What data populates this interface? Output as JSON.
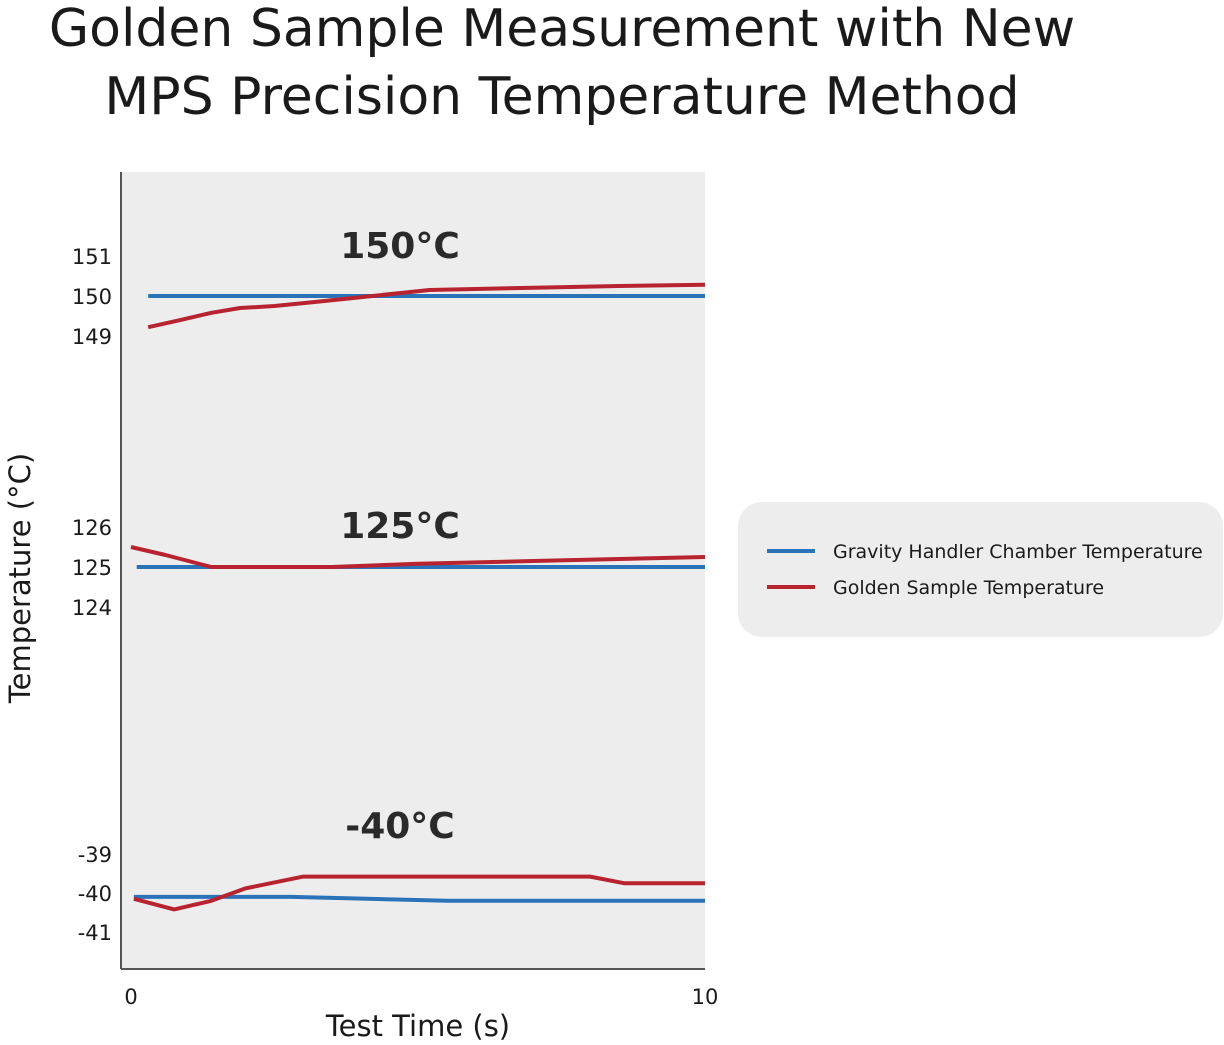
{
  "chart_data": {
    "type": "line",
    "title": [
      "Golden Sample Measurement with New",
      "MPS Precision Temperature Method"
    ],
    "xlabel": "Test Time (s)",
    "ylabel": "Temperature (°C)",
    "xlim": [
      0,
      10
    ],
    "x_ticks": [
      "0",
      "10"
    ],
    "grid": false,
    "legend_position": "right",
    "legend": [
      {
        "name": "Gravity Handler Chamber Temperature",
        "color": "#2a73b9"
      },
      {
        "name": "Golden Sample Temperature",
        "color": "#b82330"
      }
    ],
    "panels": [
      {
        "label": "150°C",
        "y_ticks": [
          "151",
          "150",
          "149"
        ],
        "ylim": [
          149,
          151
        ],
        "series": [
          {
            "name": "Gravity Handler Chamber Temperature",
            "color": "#2a73b9",
            "x": [
              0.3,
              10
            ],
            "y": [
              150.0,
              150.0
            ]
          },
          {
            "name": "Golden Sample Temperature",
            "color": "#b82330",
            "x": [
              0.3,
              0.8,
              1.4,
              1.9,
              2.5,
              3.2,
              4.0,
              5.2,
              6.8,
              8.5,
              10.0
            ],
            "y": [
              149.22,
              149.38,
              149.58,
              149.7,
              149.75,
              149.85,
              149.97,
              150.15,
              150.2,
              150.25,
              150.28
            ]
          }
        ]
      },
      {
        "label": "125°C",
        "y_ticks": [
          "126",
          "125",
          "124"
        ],
        "ylim": [
          124,
          126
        ],
        "series": [
          {
            "name": "Gravity Handler Chamber Temperature",
            "color": "#2a73b9",
            "x": [
              0.1,
              10
            ],
            "y": [
              125.0,
              125.0
            ]
          },
          {
            "name": "Golden Sample Temperature",
            "color": "#b82330",
            "x": [
              0.0,
              0.6,
              1.4,
              2.5,
              3.5,
              5.0,
              7.0,
              8.5,
              10.0
            ],
            "y": [
              125.5,
              125.3,
              125.0,
              125.0,
              125.0,
              125.08,
              125.15,
              125.2,
              125.25
            ]
          }
        ]
      },
      {
        "label": "-40°C",
        "y_ticks": [
          "-39",
          "-40",
          "-41"
        ],
        "ylim": [
          -41,
          -39
        ],
        "series": [
          {
            "name": "Gravity Handler Chamber Temperature",
            "color": "#2a73b9",
            "x": [
              0.05,
              1.0,
              2.8,
              5.5,
              10.0
            ],
            "y": [
              -40.1,
              -40.1,
              -40.1,
              -40.2,
              -40.2
            ]
          },
          {
            "name": "Golden Sample Temperature",
            "color": "#b82330",
            "x": [
              0.05,
              0.75,
              1.4,
              2.0,
              3.0,
              5.0,
              7.0,
              8.0,
              8.6,
              10.0
            ],
            "y": [
              -40.15,
              -40.42,
              -40.2,
              -39.88,
              -39.58,
              -39.58,
              -39.58,
              -39.58,
              -39.75,
              -39.75
            ]
          }
        ]
      }
    ]
  }
}
